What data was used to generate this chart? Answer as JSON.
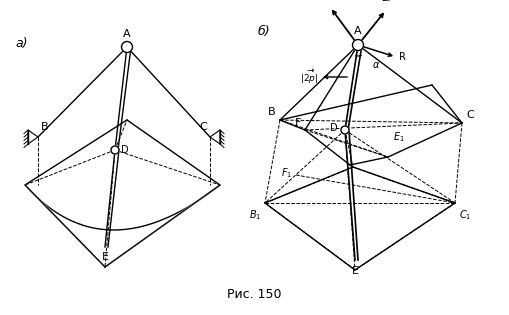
{
  "fig_width": 5.09,
  "fig_height": 3.15,
  "dpi": 100,
  "bg_color": "#ffffff",
  "line_color": "#000000",
  "caption": "Рис. 150",
  "a_label": "а)",
  "b_label": "б)"
}
